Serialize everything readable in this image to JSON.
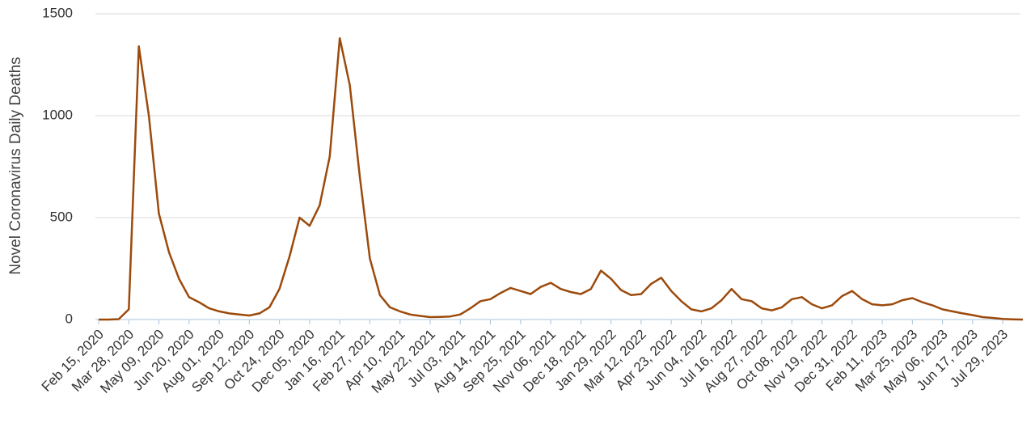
{
  "chart_data": {
    "type": "line",
    "y_label": "Novel Coronavirus Daily Deaths",
    "x": [
      "Feb 15, 2020",
      "Feb 29, 2020",
      "Mar 14, 2020",
      "Mar 28, 2020",
      "Apr 11, 2020",
      "Apr 25, 2020",
      "May 09, 2020",
      "May 23, 2020",
      "Jun 06, 2020",
      "Jun 20, 2020",
      "Jul 04, 2020",
      "Jul 18, 2020",
      "Aug 01, 2020",
      "Aug 15, 2020",
      "Aug 29, 2020",
      "Sep 12, 2020",
      "Sep 26, 2020",
      "Oct 10, 2020",
      "Oct 24, 2020",
      "Nov 07, 2020",
      "Nov 21, 2020",
      "Dec 05, 2020",
      "Dec 19, 2020",
      "Jan 02, 2021",
      "Jan 16, 2021",
      "Jan 30, 2021",
      "Feb 13, 2021",
      "Feb 27, 2021",
      "Mar 13, 2021",
      "Mar 27, 2021",
      "Apr 10, 2021",
      "Apr 24, 2021",
      "May 08, 2021",
      "May 22, 2021",
      "Jun 05, 2021",
      "Jun 19, 2021",
      "Jul 03, 2021",
      "Jul 17, 2021",
      "Jul 31, 2021",
      "Aug 14, 2021",
      "Aug 28, 2021",
      "Sep 11, 2021",
      "Sep 25, 2021",
      "Oct 09, 2021",
      "Oct 23, 2021",
      "Nov 06, 2021",
      "Nov 20, 2021",
      "Dec 04, 2021",
      "Dec 18, 2021",
      "Jan 01, 2022",
      "Jan 15, 2022",
      "Jan 29, 2022",
      "Feb 12, 2022",
      "Feb 26, 2022",
      "Mar 12, 2022",
      "Mar 26, 2022",
      "Apr 09, 2022",
      "Apr 23, 2022",
      "May 07, 2022",
      "May 21, 2022",
      "Jun 04, 2022",
      "Jun 18, 2022",
      "Jul 02, 2022",
      "Jul 16, 2022",
      "Jul 30, 2022",
      "Aug 13, 2022",
      "Aug 27, 2022",
      "Sep 10, 2022",
      "Sep 24, 2022",
      "Oct 08, 2022",
      "Oct 22, 2022",
      "Nov 05, 2022",
      "Nov 19, 2022",
      "Dec 03, 2022",
      "Dec 17, 2022",
      "Dec 31, 2022",
      "Jan 14, 2023",
      "Jan 28, 2023",
      "Feb 11, 2023",
      "Feb 25, 2023",
      "Mar 11, 2023",
      "Mar 25, 2023",
      "Apr 08, 2023",
      "Apr 22, 2023",
      "May 06, 2023",
      "May 20, 2023",
      "Jun 03, 2023",
      "Jun 17, 2023",
      "Jul 01, 2023",
      "Jul 15, 2023",
      "Jul 29, 2023",
      "Aug 12, 2023",
      "Aug 26, 2023"
    ],
    "values": [
      0,
      0,
      2,
      50,
      1340,
      1000,
      520,
      330,
      200,
      110,
      85,
      55,
      40,
      30,
      25,
      20,
      30,
      60,
      150,
      310,
      500,
      460,
      560,
      800,
      1380,
      1150,
      700,
      300,
      120,
      60,
      40,
      25,
      18,
      12,
      13,
      15,
      25,
      55,
      90,
      100,
      130,
      155,
      140,
      125,
      160,
      180,
      150,
      135,
      125,
      150,
      240,
      200,
      145,
      120,
      125,
      175,
      205,
      140,
      90,
      50,
      40,
      55,
      95,
      150,
      100,
      90,
      55,
      45,
      60,
      100,
      110,
      75,
      55,
      70,
      115,
      140,
      100,
      75,
      70,
      75,
      95,
      105,
      85,
      70,
      50,
      40,
      30,
      22,
      12,
      8,
      3,
      1,
      0
    ],
    "color": "#9c4a0c",
    "xlim": [
      "Feb 15, 2020",
      "Aug 26, 2023"
    ],
    "xticks": [
      "Feb 15, 2020",
      "Mar 28, 2020",
      "May 09, 2020",
      "Jun 20, 2020",
      "Aug 01, 2020",
      "Sep 12, 2020",
      "Oct 24, 2020",
      "Dec 05, 2020",
      "Jan 16, 2021",
      "Feb 27, 2021",
      "Apr 10, 2021",
      "May 22, 2021",
      "Jul 03, 2021",
      "Aug 14, 2021",
      "Sep 25, 2021",
      "Nov 06, 2021",
      "Dec 18, 2021",
      "Jan 29, 2022",
      "Mar 12, 2022",
      "Apr 23, 2022",
      "Jun 04, 2022",
      "Jul 16, 2022",
      "Aug 27, 2022",
      "Oct 08, 2022",
      "Nov 19, 2022",
      "Dec 31, 2022",
      "Feb 11, 2023",
      "Mar 25, 2023",
      "May 06, 2023",
      "Jun 17, 2023",
      "Jul 29, 2023"
    ],
    "ylim": [
      0,
      1500
    ],
    "yticks": [
      0,
      500,
      1000,
      1500
    ],
    "grid": true
  }
}
